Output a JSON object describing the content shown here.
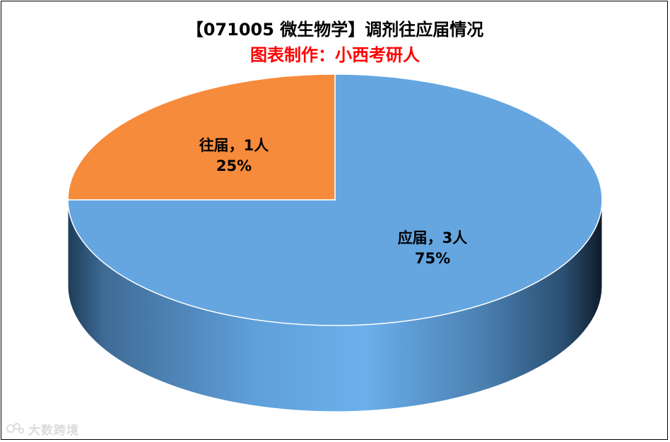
{
  "title": "【071005 微生物学】调剂往应届情况",
  "subtitle": "图表制作：小西考研人",
  "subtitle_color": "#FF0000",
  "watermark": "大数跨境",
  "chart_data": {
    "type": "pie",
    "title": "【071005 微生物学】调剂往应届情况",
    "subtitle": "图表制作：小西考研人",
    "legend": "none",
    "slices": [
      {
        "label": "应届",
        "value": 3,
        "value_label": "3人",
        "percent_label": "75%",
        "color": "#65A6E0"
      },
      {
        "label": "往届",
        "value": 1,
        "value_label": "1人",
        "percent_label": "25%",
        "color": "#F68B3C"
      }
    ],
    "data_labels": [
      {
        "line1": "应届，3人",
        "line2": "75%"
      },
      {
        "line1": "往届，1人",
        "line2": "25%"
      }
    ]
  }
}
